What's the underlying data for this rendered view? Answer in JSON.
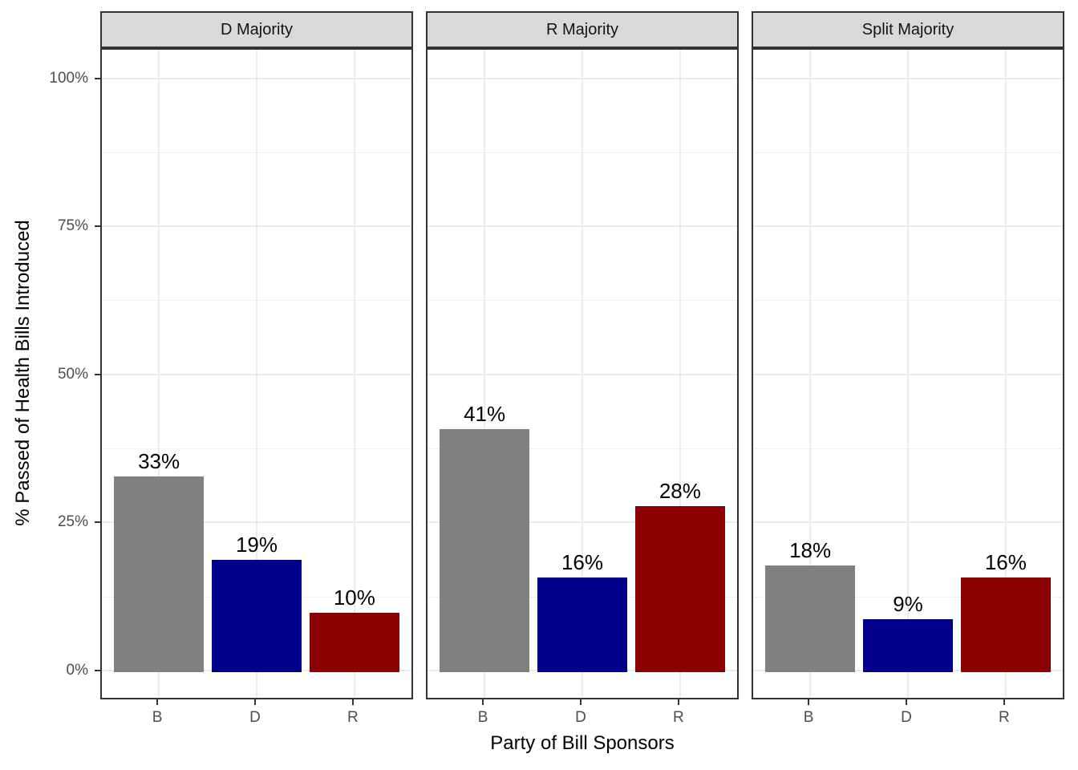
{
  "chart_data": {
    "type": "bar",
    "title": "",
    "xlabel": "Party of Bill Sponsors",
    "ylabel": "% Passed of Health Bills Introduced",
    "categories": [
      "B",
      "D",
      "R"
    ],
    "bar_colors": [
      "#808080",
      "#00008B",
      "#8B0000"
    ],
    "facets": [
      {
        "label": "D Majority",
        "values": [
          33,
          19,
          10
        ],
        "bar_labels": [
          "33%",
          "19%",
          "10%"
        ]
      },
      {
        "label": "R Majority",
        "values": [
          41,
          16,
          28
        ],
        "bar_labels": [
          "41%",
          "16%",
          "28%"
        ]
      },
      {
        "label": "Split Majority",
        "values": [
          18,
          9,
          16
        ],
        "bar_labels": [
          "18%",
          "9%",
          "16%"
        ]
      }
    ],
    "y_ticks": [
      {
        "value": 0,
        "label": "0%"
      },
      {
        "value": 25,
        "label": "25%"
      },
      {
        "value": 50,
        "label": "50%"
      },
      {
        "value": 75,
        "label": "75%"
      },
      {
        "value": 100,
        "label": "100%"
      }
    ],
    "y_minor_gridlines": [
      12.5,
      37.5,
      62.5,
      87.5
    ],
    "ylim": [
      0,
      105
    ],
    "grid": "major+minor",
    "legend_position": "none",
    "colors": {
      "strip_background": "#D9D9D9",
      "panel_background": "#FFFFFF",
      "panel_border": "#333333",
      "grid_major": "#EBEBEB",
      "grid_minor": "#F0F0F0",
      "axis_text": "#4D4D4D",
      "tick_mark": "#333333",
      "label_text": "#000000"
    }
  }
}
